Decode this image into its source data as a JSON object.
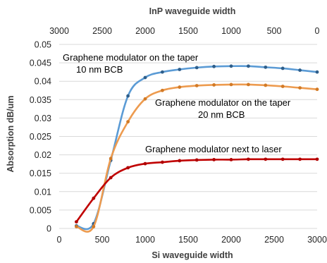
{
  "chart_data": {
    "type": "line",
    "xlabel": "Si waveguide width",
    "x2label": "InP waveguide width",
    "ylabel": "Absorption dB/um",
    "xlim": [
      0,
      3000
    ],
    "ylim": [
      0,
      0.05
    ],
    "x_ticks": [
      "0",
      "500",
      "1000",
      "1500",
      "2000",
      "2500",
      "3000"
    ],
    "x2_ticks": [
      "3000",
      "2500",
      "2000",
      "1500",
      "1000",
      "500",
      "0"
    ],
    "y_ticks": [
      "0",
      "0.005",
      "0.01",
      "0.015",
      "0.02",
      "0.025",
      "0.03",
      "0.035",
      "0.04",
      "0.045",
      "0.05"
    ],
    "grid": "horizontal",
    "series": [
      {
        "color": "#5b9bd5",
        "x": [
          200,
          400,
          600,
          800,
          1000,
          1200,
          1400,
          1600,
          1800,
          2000,
          2200,
          2400,
          2600,
          2800,
          3000
        ],
        "y": [
          0.0007,
          0.0013,
          0.0185,
          0.036,
          0.041,
          0.0425,
          0.0432,
          0.0437,
          0.044,
          0.0441,
          0.0441,
          0.0438,
          0.0435,
          0.043,
          0.0425
        ]
      },
      {
        "color": "#ed9b4f",
        "x": [
          200,
          400,
          600,
          800,
          1000,
          1200,
          1400,
          1600,
          1800,
          2000,
          2200,
          2400,
          2600,
          2800,
          3000
        ],
        "y": [
          0.0005,
          0.0005,
          0.019,
          0.029,
          0.0352,
          0.0375,
          0.0384,
          0.0388,
          0.039,
          0.0391,
          0.0391,
          0.0389,
          0.0386,
          0.0382,
          0.0378
        ]
      },
      {
        "color": "#c00000",
        "x": [
          200,
          400,
          600,
          800,
          1000,
          1200,
          1400,
          1600,
          1800,
          2000,
          2200,
          2400,
          2600,
          2800,
          3000
        ],
        "y": [
          0.0018,
          0.0082,
          0.0138,
          0.0165,
          0.0176,
          0.018,
          0.0184,
          0.0186,
          0.0187,
          0.0187,
          0.0188,
          0.0188,
          0.0188,
          0.0188,
          0.0188
        ]
      }
    ],
    "annotations": [
      {
        "lines": [
          "Graphene modulator on the taper",
          "10 nm BCB"
        ],
        "series_color": "#5b9bd5"
      },
      {
        "lines": [
          "Graphene modulator on the taper",
          "20 nm BCB"
        ],
        "series_color": "#ed9b4f"
      },
      {
        "lines": [
          "Graphene modulator next to laser"
        ],
        "series_color": "#c00000"
      }
    ]
  }
}
